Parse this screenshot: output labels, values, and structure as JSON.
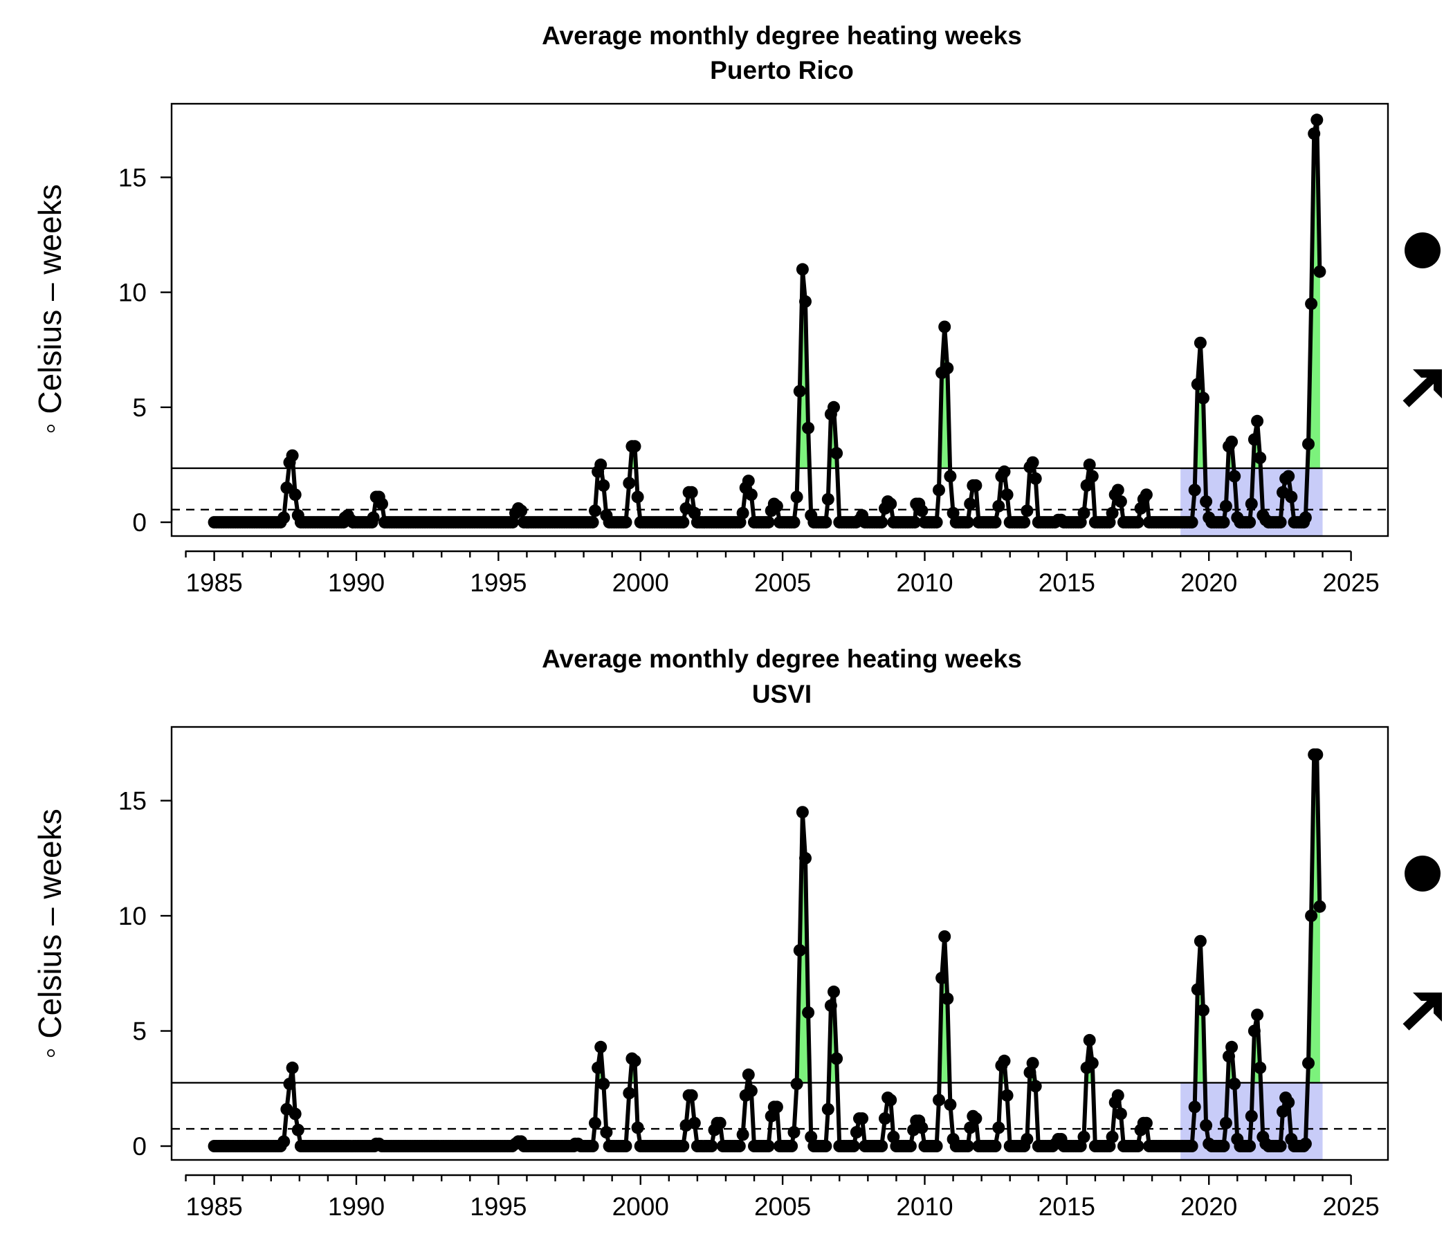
{
  "colors": {
    "line": "#000000",
    "above_mean_fill": "#7CF27C",
    "recent_window_fill": "#C8CCF8",
    "mean_line": "#000000",
    "sd_line": "#000000"
  },
  "chart_data": [
    {
      "type": "line",
      "title": "Average monthly degree heating weeks",
      "subtitle": "Puerto Rico",
      "xlabel": "",
      "ylabel": "◦ Celsius – weeks",
      "xlim": [
        1983.5,
        2026.3
      ],
      "ylim": [
        -0.6,
        18.2
      ],
      "x_ticks": [
        1985,
        1990,
        1995,
        2000,
        2005,
        2010,
        2015,
        2020,
        2025
      ],
      "y_ticks": [
        0,
        5,
        10,
        15
      ],
      "mean_line": 0.55,
      "upper_line": 2.35,
      "highlight_window": [
        2019.0,
        2024.0
      ],
      "trend_indicators": {
        "status": "filled-circle",
        "trend": "up-arrow"
      },
      "grid": false,
      "spikes": [
        {
          "t": [
            1987.45,
            1987.55,
            1987.65,
            1987.75,
            1987.85,
            1987.95,
            1988.05
          ],
          "v": [
            0.2,
            1.5,
            2.6,
            2.9,
            1.2,
            0.3,
            0
          ]
        },
        {
          "t": [
            1989.6,
            1989.7,
            1989.8
          ],
          "v": [
            0.2,
            0.3,
            0.1
          ]
        },
        {
          "t": [
            1990.6,
            1990.7,
            1990.8,
            1990.9,
            1991.0
          ],
          "v": [
            0.2,
            1.1,
            1.1,
            0.8,
            0
          ]
        },
        {
          "t": [
            1995.6,
            1995.7,
            1995.8,
            1995.9
          ],
          "v": [
            0.4,
            0.6,
            0.5,
            0
          ]
        },
        {
          "t": [
            1998.4,
            1998.5,
            1998.6,
            1998.7,
            1998.8,
            1998.9
          ],
          "v": [
            0.5,
            2.2,
            2.5,
            1.6,
            0.3,
            0
          ]
        },
        {
          "t": [
            1999.6,
            1999.7,
            1999.8,
            1999.9,
            2000.0
          ],
          "v": [
            1.7,
            3.3,
            3.3,
            1.1,
            0
          ]
        },
        {
          "t": [
            2001.6,
            2001.7,
            2001.8,
            2001.9,
            2002.0
          ],
          "v": [
            0.6,
            1.3,
            1.3,
            0.4,
            0
          ]
        },
        {
          "t": [
            2003.6,
            2003.7,
            2003.8,
            2003.9,
            2004.0
          ],
          "v": [
            0.4,
            1.5,
            1.8,
            1.2,
            0
          ]
        },
        {
          "t": [
            2004.6,
            2004.7,
            2004.8,
            2004.9
          ],
          "v": [
            0.5,
            0.8,
            0.7,
            0
          ]
        },
        {
          "t": [
            2005.5,
            2005.6,
            2005.7,
            2005.8,
            2005.9,
            2006.0,
            2006.1
          ],
          "v": [
            1.1,
            5.7,
            11.0,
            9.6,
            4.1,
            0.3,
            0
          ]
        },
        {
          "t": [
            2006.6,
            2006.7,
            2006.8,
            2006.9,
            2007.0
          ],
          "v": [
            1.0,
            4.7,
            5.0,
            3.0,
            0
          ]
        },
        {
          "t": [
            2007.7,
            2007.8,
            2007.9
          ],
          "v": [
            0.1,
            0.3,
            0
          ]
        },
        {
          "t": [
            2008.6,
            2008.7,
            2008.8,
            2008.9
          ],
          "v": [
            0.6,
            0.9,
            0.8,
            0
          ]
        },
        {
          "t": [
            2009.7,
            2009.8,
            2009.9,
            2010.0
          ],
          "v": [
            0.8,
            0.8,
            0.5,
            0
          ]
        },
        {
          "t": [
            2010.5,
            2010.6,
            2010.7,
            2010.8,
            2010.9,
            2011.0,
            2011.1
          ],
          "v": [
            1.4,
            6.5,
            8.5,
            6.7,
            2.0,
            0.4,
            0
          ]
        },
        {
          "t": [
            2011.6,
            2011.7,
            2011.8,
            2011.9
          ],
          "v": [
            0.8,
            1.6,
            1.6,
            0
          ]
        },
        {
          "t": [
            2012.6,
            2012.7,
            2012.8,
            2012.9,
            2013.0
          ],
          "v": [
            0.7,
            2.0,
            2.2,
            1.2,
            0
          ]
        },
        {
          "t": [
            2013.6,
            2013.7,
            2013.8,
            2013.9,
            2014.0
          ],
          "v": [
            0.5,
            2.4,
            2.6,
            1.9,
            0
          ]
        },
        {
          "t": [
            2014.7,
            2014.8,
            2014.9
          ],
          "v": [
            0.1,
            0.1,
            0
          ]
        },
        {
          "t": [
            2015.6,
            2015.7,
            2015.8,
            2015.9,
            2016.0
          ],
          "v": [
            0.4,
            1.6,
            2.5,
            2.0,
            0
          ]
        },
        {
          "t": [
            2016.6,
            2016.7,
            2016.8,
            2016.9,
            2017.0
          ],
          "v": [
            0.4,
            1.2,
            1.4,
            0.9,
            0
          ]
        },
        {
          "t": [
            2017.6,
            2017.7,
            2017.8,
            2017.9
          ],
          "v": [
            0.6,
            1.0,
            1.2,
            0
          ]
        },
        {
          "t": [
            2019.5,
            2019.6,
            2019.7,
            2019.8,
            2019.9,
            2020.0,
            2020.1
          ],
          "v": [
            1.4,
            6.0,
            7.8,
            5.4,
            0.9,
            0.2,
            0
          ]
        },
        {
          "t": [
            2020.6,
            2020.7,
            2020.8,
            2020.9,
            2021.0,
            2021.1
          ],
          "v": [
            0.7,
            3.3,
            3.5,
            2.0,
            0.2,
            0
          ]
        },
        {
          "t": [
            2021.5,
            2021.6,
            2021.7,
            2021.8,
            2021.9,
            2022.0,
            2022.1
          ],
          "v": [
            0.8,
            3.6,
            4.4,
            2.8,
            0.3,
            0.1,
            0
          ]
        },
        {
          "t": [
            2022.6,
            2022.7,
            2022.8,
            2022.9,
            2023.0
          ],
          "v": [
            1.3,
            1.9,
            2.0,
            1.1,
            0
          ]
        },
        {
          "t": [
            2023.4,
            2023.5,
            2023.6,
            2023.7,
            2023.8,
            2023.9
          ],
          "v": [
            0.2,
            3.4,
            9.5,
            16.9,
            17.5,
            10.9
          ]
        }
      ]
    },
    {
      "type": "line",
      "title": "Average monthly degree heating weeks",
      "subtitle": "USVI",
      "xlabel": "",
      "ylabel": "◦ Celsius – weeks",
      "xlim": [
        1983.5,
        2026.3
      ],
      "ylim": [
        -0.6,
        18.2
      ],
      "x_ticks": [
        1985,
        1990,
        1995,
        2000,
        2005,
        2010,
        2015,
        2020,
        2025
      ],
      "y_ticks": [
        0,
        5,
        10,
        15
      ],
      "mean_line": 0.75,
      "upper_line": 2.75,
      "highlight_window": [
        2019.0,
        2024.0
      ],
      "trend_indicators": {
        "status": "filled-circle",
        "trend": "up-arrow"
      },
      "grid": false,
      "spikes": [
        {
          "t": [
            1987.45,
            1987.55,
            1987.65,
            1987.75,
            1987.85,
            1987.95,
            1988.05
          ],
          "v": [
            0.2,
            1.6,
            2.7,
            3.4,
            1.4,
            0.7,
            0
          ]
        },
        {
          "t": [
            1990.7,
            1990.8,
            1990.9
          ],
          "v": [
            0.1,
            0.1,
            0
          ]
        },
        {
          "t": [
            1995.6,
            1995.7,
            1995.8,
            1995.9
          ],
          "v": [
            0.1,
            0.2,
            0.2,
            0
          ]
        },
        {
          "t": [
            1997.7,
            1997.8,
            1997.9
          ],
          "v": [
            0.1,
            0.1,
            0
          ]
        },
        {
          "t": [
            1998.4,
            1998.5,
            1998.6,
            1998.7,
            1998.8,
            1998.9
          ],
          "v": [
            1.0,
            3.4,
            4.3,
            2.7,
            0.6,
            0
          ]
        },
        {
          "t": [
            1999.6,
            1999.7,
            1999.8,
            1999.9,
            2000.0
          ],
          "v": [
            2.3,
            3.8,
            3.7,
            0.8,
            0
          ]
        },
        {
          "t": [
            2001.6,
            2001.7,
            2001.8,
            2001.9,
            2002.0
          ],
          "v": [
            0.9,
            2.2,
            2.2,
            1.0,
            0
          ]
        },
        {
          "t": [
            2002.6,
            2002.7,
            2002.8,
            2002.9
          ],
          "v": [
            0.7,
            1.0,
            1.0,
            0
          ]
        },
        {
          "t": [
            2003.6,
            2003.7,
            2003.8,
            2003.9,
            2004.0
          ],
          "v": [
            0.5,
            2.2,
            3.1,
            2.4,
            0
          ]
        },
        {
          "t": [
            2004.6,
            2004.7,
            2004.8,
            2004.9
          ],
          "v": [
            1.3,
            1.7,
            1.7,
            0
          ]
        },
        {
          "t": [
            2005.4,
            2005.5,
            2005.6,
            2005.7,
            2005.8,
            2005.9,
            2006.0,
            2006.1
          ],
          "v": [
            0.6,
            2.7,
            8.5,
            14.5,
            12.5,
            5.8,
            0.4,
            0
          ]
        },
        {
          "t": [
            2006.6,
            2006.7,
            2006.8,
            2006.9,
            2007.0
          ],
          "v": [
            1.6,
            6.1,
            6.7,
            3.8,
            0
          ]
        },
        {
          "t": [
            2007.6,
            2007.7,
            2007.8,
            2007.9
          ],
          "v": [
            0.6,
            1.2,
            1.2,
            0
          ]
        },
        {
          "t": [
            2008.6,
            2008.7,
            2008.8,
            2008.9,
            2009.0
          ],
          "v": [
            1.2,
            2.1,
            2.0,
            0.4,
            0
          ]
        },
        {
          "t": [
            2009.6,
            2009.7,
            2009.8,
            2009.9,
            2010.0
          ],
          "v": [
            0.7,
            1.1,
            1.1,
            0.8,
            0
          ]
        },
        {
          "t": [
            2010.5,
            2010.6,
            2010.7,
            2010.8,
            2010.9,
            2011.0,
            2011.1
          ],
          "v": [
            2.0,
            7.3,
            9.1,
            6.4,
            1.8,
            0.3,
            0
          ]
        },
        {
          "t": [
            2011.6,
            2011.7,
            2011.8,
            2011.9
          ],
          "v": [
            0.8,
            1.3,
            1.2,
            0
          ]
        },
        {
          "t": [
            2012.6,
            2012.7,
            2012.8,
            2012.9,
            2013.0
          ],
          "v": [
            0.8,
            3.5,
            3.7,
            2.2,
            0
          ]
        },
        {
          "t": [
            2013.6,
            2013.7,
            2013.8,
            2013.9,
            2014.0
          ],
          "v": [
            0.3,
            3.2,
            3.6,
            2.6,
            0
          ]
        },
        {
          "t": [
            2014.6,
            2014.7,
            2014.8,
            2014.9
          ],
          "v": [
            0.1,
            0.3,
            0.3,
            0
          ]
        },
        {
          "t": [
            2015.6,
            2015.7,
            2015.8,
            2015.9,
            2016.0
          ],
          "v": [
            0.4,
            3.4,
            4.6,
            3.6,
            0
          ]
        },
        {
          "t": [
            2016.6,
            2016.7,
            2016.8,
            2016.9,
            2017.0
          ],
          "v": [
            0.4,
            1.9,
            2.2,
            1.4,
            0
          ]
        },
        {
          "t": [
            2017.6,
            2017.7,
            2017.8,
            2017.9
          ],
          "v": [
            0.7,
            1.0,
            1.0,
            0
          ]
        },
        {
          "t": [
            2019.5,
            2019.6,
            2019.7,
            2019.8,
            2019.9,
            2020.0,
            2020.1
          ],
          "v": [
            1.7,
            6.8,
            8.9,
            5.9,
            0.9,
            0.1,
            0
          ]
        },
        {
          "t": [
            2020.6,
            2020.7,
            2020.8,
            2020.9,
            2021.0,
            2021.1
          ],
          "v": [
            1.0,
            3.9,
            4.3,
            2.7,
            0.3,
            0
          ]
        },
        {
          "t": [
            2021.5,
            2021.6,
            2021.7,
            2021.8,
            2021.9,
            2022.0,
            2022.1
          ],
          "v": [
            1.3,
            5.0,
            5.7,
            3.4,
            0.4,
            0.1,
            0
          ]
        },
        {
          "t": [
            2022.6,
            2022.7,
            2022.8,
            2022.9,
            2023.0
          ],
          "v": [
            1.5,
            2.1,
            1.9,
            0.3,
            0
          ]
        },
        {
          "t": [
            2023.4,
            2023.5,
            2023.6,
            2023.7,
            2023.8,
            2023.9
          ],
          "v": [
            0.1,
            3.6,
            10.0,
            17.0,
            17.0,
            10.4
          ]
        }
      ]
    }
  ]
}
